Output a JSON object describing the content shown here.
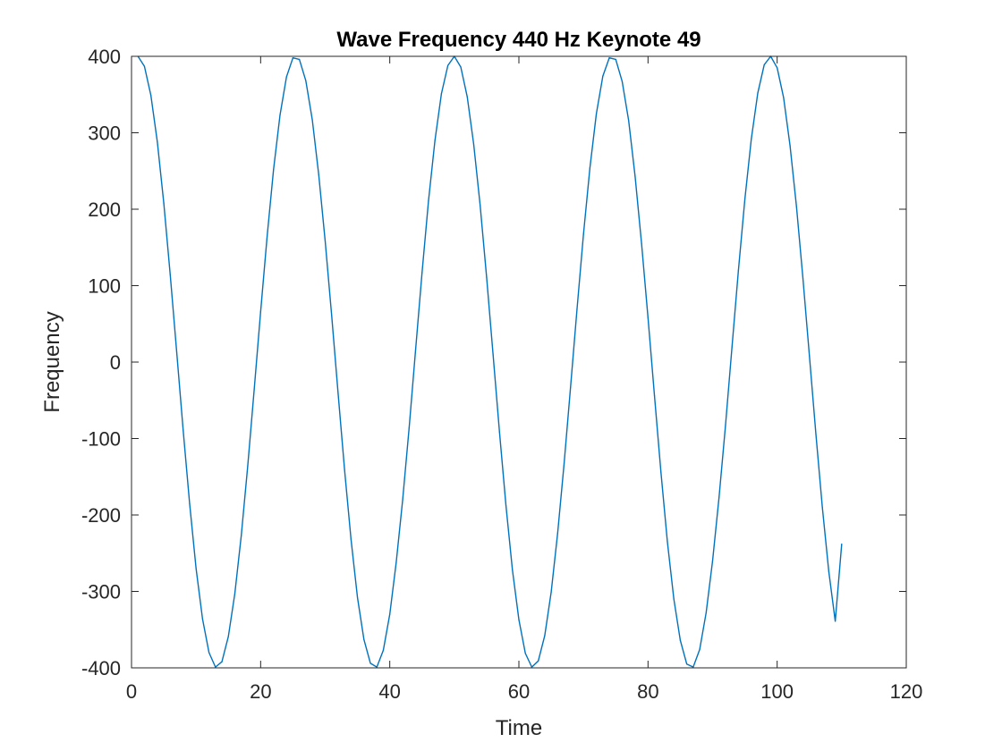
{
  "chart_data": {
    "type": "line",
    "title": "Wave Frequency 440 Hz Keynote 49",
    "xlabel": "Time",
    "ylabel": "Frequency",
    "xlim": [
      0,
      120
    ],
    "ylim": [
      -400,
      400
    ],
    "xticks": [
      "0",
      "20",
      "40",
      "60",
      "80",
      "100",
      "120"
    ],
    "yticks": [
      "400",
      "300",
      "200",
      "100",
      "0",
      "-100",
      "-200",
      "-300",
      "-400"
    ],
    "grid": false,
    "legend": "none",
    "series": [
      {
        "color": "#0072BD",
        "x": [
          1,
          2,
          3,
          4,
          5,
          6,
          7,
          8,
          9,
          10,
          11,
          12,
          13,
          14,
          15,
          16,
          17,
          18,
          19,
          20,
          21,
          22,
          23,
          24,
          25,
          26,
          27,
          28,
          29,
          30,
          31,
          32,
          33,
          34,
          35,
          36,
          37,
          38,
          39,
          40,
          41,
          42,
          43,
          44,
          45,
          46,
          47,
          48,
          49,
          50,
          51,
          52,
          53,
          54,
          55,
          56,
          57,
          58,
          59,
          60,
          61,
          62,
          63,
          64,
          65,
          66,
          67,
          68,
          69,
          70,
          71,
          72,
          73,
          74,
          75,
          76,
          77,
          78,
          79,
          80,
          81,
          82,
          83,
          84,
          85,
          86,
          87,
          88,
          89,
          90,
          91,
          92,
          93,
          94,
          95,
          96,
          97,
          98,
          99,
          100,
          101,
          102,
          103,
          104,
          105,
          106,
          107,
          108,
          109,
          110
        ],
        "y": [
          400,
          387,
          349,
          288,
          208,
          114,
          13,
          -89,
          -185,
          -270,
          -336,
          -380,
          -399,
          -392,
          -359,
          -303,
          -227,
          -136,
          -36,
          66,
          164,
          252,
          323,
          373,
          398,
          396,
          368,
          317,
          245,
          158,
          61,
          -41,
          -141,
          -232,
          -308,
          -363,
          -394,
          -399,
          -377,
          -330,
          -262,
          -180,
          -86,
          16,
          117,
          211,
          290,
          351,
          388,
          400,
          386,
          347,
          285,
          205,
          111,
          10,
          -92,
          -188,
          -272,
          -337,
          -381,
          -399,
          -391,
          -358,
          -301,
          -224,
          -133,
          -33,
          69,
          167,
          254,
          325,
          374,
          398,
          396,
          367,
          316,
          243,
          155,
          58,
          -44,
          -144,
          -235,
          -310,
          -364,
          -395,
          -399,
          -376,
          -328,
          -260,
          -177,
          -83,
          19,
          120,
          213,
          292,
          352,
          389,
          400,
          385,
          346,
          283,
          203,
          109,
          8,
          -94,
          -190,
          -274,
          -339,
          -238
        ]
      }
    ]
  }
}
